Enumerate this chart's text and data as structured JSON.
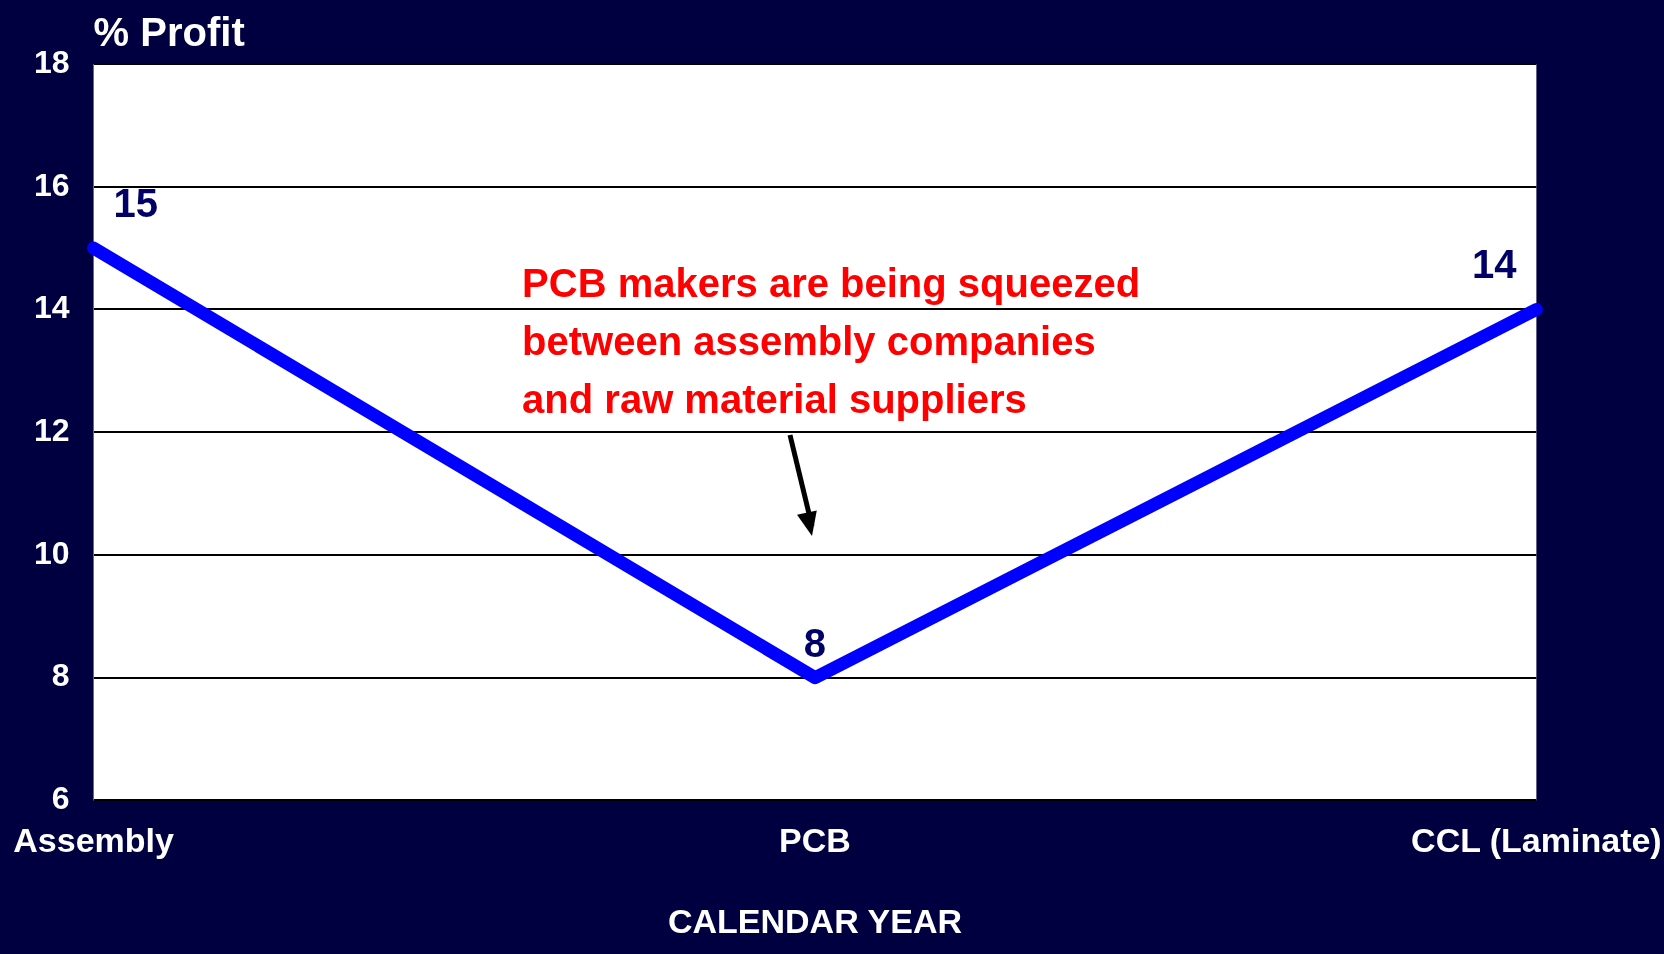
{
  "chart_data": {
    "type": "line",
    "ylabel": "% Profit",
    "xlabel": "CALENDAR YEAR",
    "categories": [
      "Assembly",
      "PCB",
      "CCL (Laminate)"
    ],
    "series": [
      {
        "color": "#0000ff",
        "values": [
          15,
          8,
          14
        ]
      }
    ],
    "ylim": [
      6,
      18
    ],
    "yticks": [
      6,
      8,
      10,
      12,
      14,
      16,
      18
    ],
    "grid": "y",
    "legend": false,
    "marker": "none",
    "line_style": "solid",
    "data_labels": true,
    "annotations": [
      "PCB makers are being squeezed\nbetween assembly companies\nand raw material suppliers"
    ]
  }
}
